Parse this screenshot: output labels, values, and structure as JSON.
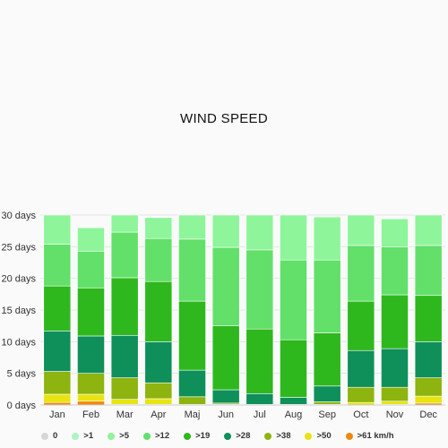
{
  "chart_data": {
    "type": "bar",
    "stacked": true,
    "title": "WIND SPEED",
    "xlabel": "",
    "ylabel": "",
    "ylim": [
      0,
      30
    ],
    "y_ticks": [
      "0 days",
      "5 days",
      "10 days",
      "15 days",
      "20 days",
      "25 days",
      "30 days"
    ],
    "categories": [
      "Jan",
      "Feb",
      "Mar",
      "Apr",
      "Maj",
      "Jun",
      "Jul",
      "Aug",
      "Sep",
      "Oct",
      "Nov",
      "Dec"
    ],
    "series": [
      {
        "name": ">61 km/h",
        "color": "#f0880f",
        "values": [
          0.4,
          0.6,
          0.1,
          0.1,
          0,
          0,
          0,
          0,
          0,
          0,
          0.1,
          0.3
        ]
      },
      {
        "name": ">50",
        "color": "#e8e410",
        "values": [
          1.3,
          1.1,
          0.8,
          0.9,
          0.1,
          0.1,
          0,
          0,
          0.1,
          0.4,
          0.5,
          1.1
        ]
      },
      {
        "name": ">38",
        "color": "#8db40f",
        "values": [
          3.6,
          3.3,
          3.4,
          2.5,
          1.2,
          0.2,
          0.1,
          0.1,
          0.4,
          2.4,
          2.2,
          2.9
        ]
      },
      {
        "name": ">28",
        "color": "#0f8f5a",
        "values": [
          6.4,
          5.9,
          6.7,
          6.5,
          4.2,
          2.1,
          1.7,
          1.1,
          2.5,
          5.8,
          6.1,
          5.7
        ]
      },
      {
        "name": ">19",
        "color": "#2eb81e",
        "values": [
          7.1,
          7.6,
          9.1,
          9.5,
          10.9,
          10.1,
          10.2,
          9.1,
          8.4,
          7.8,
          8.5,
          7.3
        ]
      },
      {
        "name": ">12",
        "color": "#62e06a",
        "values": [
          6.6,
          5.8,
          7.2,
          6.8,
          9.8,
          12.4,
          12.5,
          12.6,
          11.5,
          8.8,
          7.6,
          7.9
        ]
      },
      {
        "name": ">5",
        "color": "#8ef59a",
        "values": [
          4.6,
          3.7,
          2.7,
          3.3,
          3.8,
          5.1,
          5.5,
          7.1,
          6.8,
          4.8,
          4.4,
          4.8
        ]
      },
      {
        "name": ">1",
        "color": "#aef2c2",
        "values": [
          0,
          0,
          0,
          0,
          0,
          0,
          0,
          0,
          0,
          0,
          0,
          0
        ]
      },
      {
        "name": "0",
        "color": "#d6d6d6",
        "values": [
          0,
          0,
          0,
          0,
          0,
          0,
          0,
          0,
          0,
          0,
          0,
          0
        ]
      }
    ],
    "legend_order": [
      "0",
      ">1",
      ">5",
      ">12",
      ">19",
      ">28",
      ">38",
      ">50",
      ">61 km/h"
    ],
    "legend_position": "bottom",
    "grid": true
  }
}
